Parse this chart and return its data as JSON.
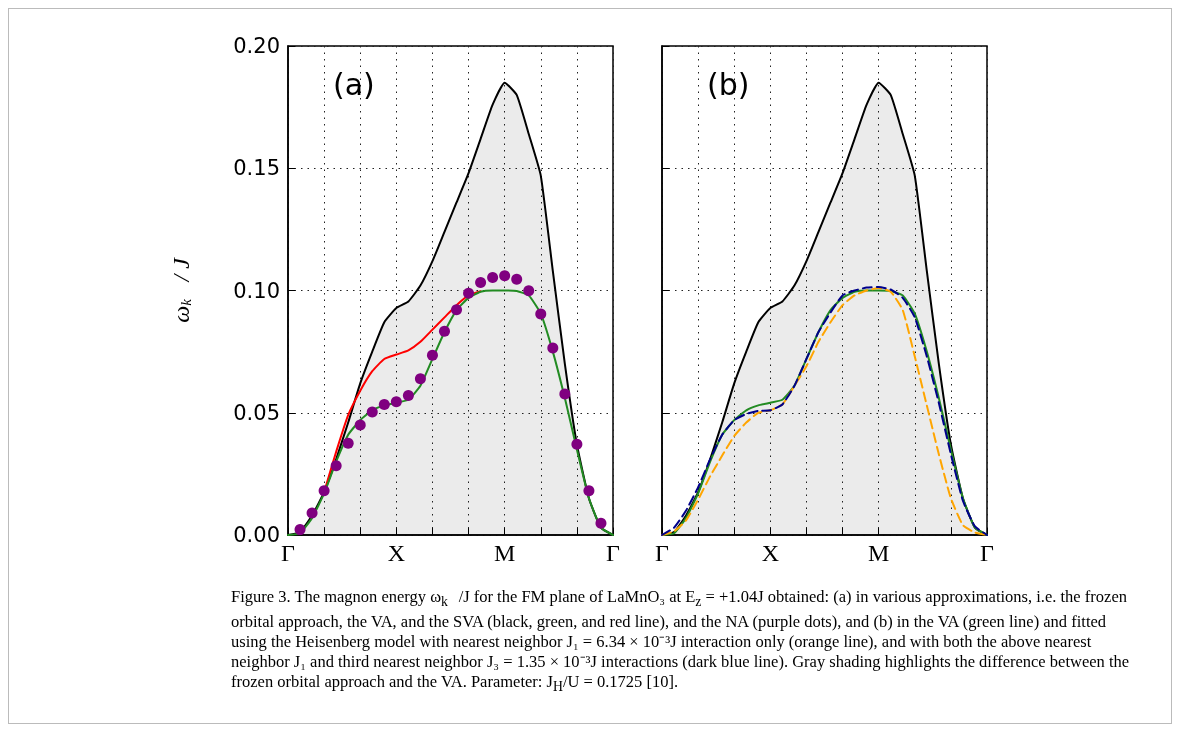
{
  "chart_data": [
    {
      "type": "line",
      "title": "(a)",
      "ylabel": "ω$_{k⃗}$ / J",
      "ylim": [
        0,
        0.2
      ],
      "categories": [
        "Γ",
        null,
        null,
        null,
        null,
        null,
        null,
        null,
        null,
        "X",
        null,
        null,
        null,
        null,
        null,
        null,
        null,
        null,
        "M",
        null,
        null,
        null,
        null,
        null,
        null,
        null,
        null,
        "Γ"
      ],
      "yticks": [
        {
          "value": 0,
          "label": "0.00"
        },
        {
          "value": 0.05,
          "label": "0.05"
        },
        {
          "value": 0.1,
          "label": "0.10"
        },
        {
          "value": 0.15,
          "label": "0.15"
        },
        {
          "value": 0.2,
          "label": "0.20"
        }
      ],
      "grid": true,
      "series": [
        {
          "type": "area",
          "color": "#000000",
          "values": [
            0,
            0.0012,
            0.008,
            0.0175,
            0.031,
            0.046,
            0.062,
            0.075,
            0.087,
            0.0928,
            0.0955,
            0.102,
            0.112,
            0.124,
            0.136,
            0.148,
            0.162,
            0.176,
            0.185,
            0.18,
            0.164,
            0.147,
            0.108,
            0.07,
            0.037,
            0.015,
            0.003,
            0
          ]
        },
        {
          "color": "#ff0000",
          "values": [
            null,
            null,
            null,
            0.0175,
            0.034,
            0.049,
            0.059,
            0.067,
            0.072,
            0.0738,
            0.0755,
            0.079,
            0.084,
            0.089,
            0.094,
            0.098,
            0.0997,
            null,
            null,
            null,
            null,
            null,
            null,
            null,
            null,
            null,
            null,
            null
          ]
        },
        {
          "color": "#228b22",
          "values": [
            0,
            0.0007,
            0.007,
            0.017,
            0.03,
            0.041,
            0.047,
            0.051,
            0.053,
            0.0541,
            0.0553,
            0.061,
            0.072,
            0.083,
            0.092,
            0.097,
            0.0995,
            0.1,
            0.1,
            0.0998,
            0.098,
            0.0905,
            0.075,
            0.056,
            0.035,
            0.015,
            0.003,
            0
          ]
        },
        {
          "type": "scatter",
          "color": "#800080",
          "marker": "circle",
          "values": [
            null,
            0.0022,
            0.009,
            0.0181,
            0.0283,
            0.0375,
            0.045,
            0.0503,
            0.0534,
            0.0545,
            0.0571,
            0.0639,
            0.0735,
            0.0833,
            0.0921,
            0.0989,
            0.1033,
            0.1053,
            0.106,
            0.1046,
            0.0999,
            0.0904,
            0.0765,
            0.0577,
            0.0371,
            0.0181,
            0.0048,
            null
          ]
        }
      ],
      "annotations": [
        "Figure 3. The magnon energy ω$_{k⃗}$/J for the FM plane of LaMnO₃ at E$_{z}$ = +1.04J obtained: (a) in various approximations, i.e. the frozen orbital approach, the VA, and the SVA (black, green, and red line), and the NA (purple dots), and (b) in the VA (green line) and fitted using the Heisenberg model with nearest neighbor J₁ = 6.34 × 10⁻³J interaction only (orange line), and with both the above nearest neighbor J₁ and third nearest neighbor J₃ = 1.35 × 10⁻³J interactions (dark blue line). Gray shading highlights the difference between the frozen orbital approach and the VA. Parameter: J$_{H}$/U = 0.1725 [10]."
      ]
    },
    {
      "type": "line",
      "title": "(b)",
      "ylim": [
        0,
        0.2
      ],
      "tick_labels": "x",
      "categories": [
        "Γ",
        null,
        null,
        null,
        null,
        null,
        null,
        null,
        null,
        "X",
        null,
        null,
        null,
        null,
        null,
        null,
        null,
        null,
        "M",
        null,
        null,
        null,
        null,
        null,
        null,
        null,
        null,
        "Γ"
      ],
      "yticks": [
        0,
        0.05,
        0.1,
        0.15,
        0.2
      ],
      "grid": true,
      "series": [
        {
          "type": "area",
          "color": "#000000",
          "values": [
            0,
            0.0012,
            0.008,
            0.0175,
            0.031,
            0.046,
            0.062,
            0.075,
            0.087,
            0.0928,
            0.0955,
            0.102,
            0.112,
            0.124,
            0.136,
            0.148,
            0.162,
            0.176,
            0.185,
            0.18,
            0.164,
            0.147,
            0.108,
            0.07,
            0.037,
            0.015,
            0.003,
            0
          ]
        },
        {
          "color": "#228b22",
          "values": [
            0,
            0.0007,
            0.007,
            0.017,
            0.03,
            0.041,
            0.047,
            0.051,
            0.053,
            0.0541,
            0.0553,
            0.061,
            0.072,
            0.083,
            0.092,
            0.097,
            0.0995,
            0.1,
            0.1,
            0.0998,
            0.098,
            0.0905,
            0.075,
            0.056,
            0.035,
            0.015,
            0.003,
            0
          ]
        },
        {
          "color": "#ffa500",
          "line_style": "dashed",
          "values": [
            0,
            0.0015,
            0.006,
            0.0145,
            0.024,
            0.0325,
            0.0405,
            0.046,
            0.05,
            0.051,
            0.0534,
            0.061,
            0.069,
            0.079,
            0.087,
            0.094,
            0.098,
            0.1,
            0.101,
            0.0995,
            0.092,
            0.073,
            0.053,
            0.033,
            0.015,
            0.004,
            0.001,
            0
          ]
        },
        {
          "color": "#00008b",
          "line_style": "dashed",
          "values": [
            0,
            0.003,
            0.01,
            0.0195,
            0.031,
            0.041,
            0.047,
            0.0495,
            0.0508,
            0.051,
            0.0534,
            0.061,
            0.072,
            0.083,
            0.091,
            0.098,
            0.1,
            0.1012,
            0.1014,
            0.1004,
            0.097,
            0.089,
            0.073,
            0.054,
            0.033,
            0.014,
            0.0035,
            0
          ]
        }
      ]
    }
  ]
}
